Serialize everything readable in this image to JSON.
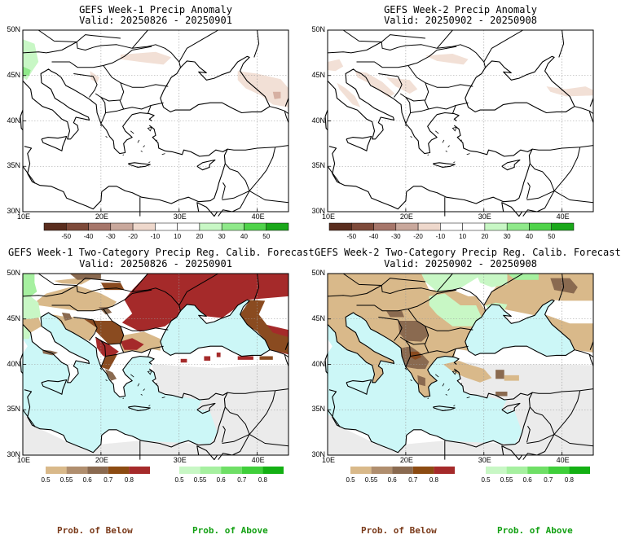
{
  "panels": [
    {
      "id": "week1-anomaly",
      "title": "GEFS Week-1 Precip Anomaly",
      "valid": "Valid: 20250826 - 20250901"
    },
    {
      "id": "week2-anomaly",
      "title": "GEFS Week-2 Precip Anomaly",
      "valid": "Valid: 20250902 - 20250908"
    },
    {
      "id": "week1-twocat",
      "title": "GEFS Week-1 Two-Category Precip Reg. Calib. Forecast",
      "valid": "Valid: 20250826 - 20250901"
    },
    {
      "id": "week2-twocat",
      "title": "GEFS Week-2 Two-Category Precip Reg. Calib. Forecast",
      "valid": "Valid: 20250902 - 20250908"
    }
  ],
  "lat_labels": [
    "50N",
    "45N",
    "40N",
    "35N",
    "30N"
  ],
  "lon_labels": [
    "10E",
    "20E",
    "30E",
    "40E"
  ],
  "anomaly_colorbar": {
    "labels": [
      "-50",
      "-40",
      "-30",
      "-20",
      "-10",
      "10",
      "20",
      "30",
      "40",
      "50"
    ],
    "colors": [
      "#5a2d1e",
      "#7e4a3a",
      "#a6766a",
      "#c9a89c",
      "#eed8cc",
      "#ffffff",
      "#ffffff",
      "#c8f7c5",
      "#8fe98a",
      "#4fd34a",
      "#1aa81a"
    ]
  },
  "prob_below_colorbar": {
    "labels": [
      "0.5",
      "0.55",
      "0.6",
      "0.7",
      "0.8"
    ],
    "colors": [
      "#d9b98a",
      "#b08e6e",
      "#8a6a50",
      "#8c4b12",
      "#a52a2a"
    ]
  },
  "prob_above_colorbar": {
    "labels": [
      "0.5",
      "0.55",
      "0.6",
      "0.7",
      "0.8"
    ],
    "colors": [
      "#c8f7c5",
      "#a6f0a0",
      "#6fdf66",
      "#3fcf3a",
      "#13b013"
    ]
  },
  "footer": {
    "prob_below": "Prob. of Below",
    "prob_above": "Prob. of Above"
  },
  "colors": {
    "sea": "#ccf7f7",
    "normal_land": "#ebebeb",
    "below_brown": "#d9b98a",
    "below_dark": "#8a6a50",
    "below_red": "#a52a2a",
    "above_green": "#a6f0a0",
    "text_below": "#7a3a1a",
    "text_above": "#13a013"
  }
}
